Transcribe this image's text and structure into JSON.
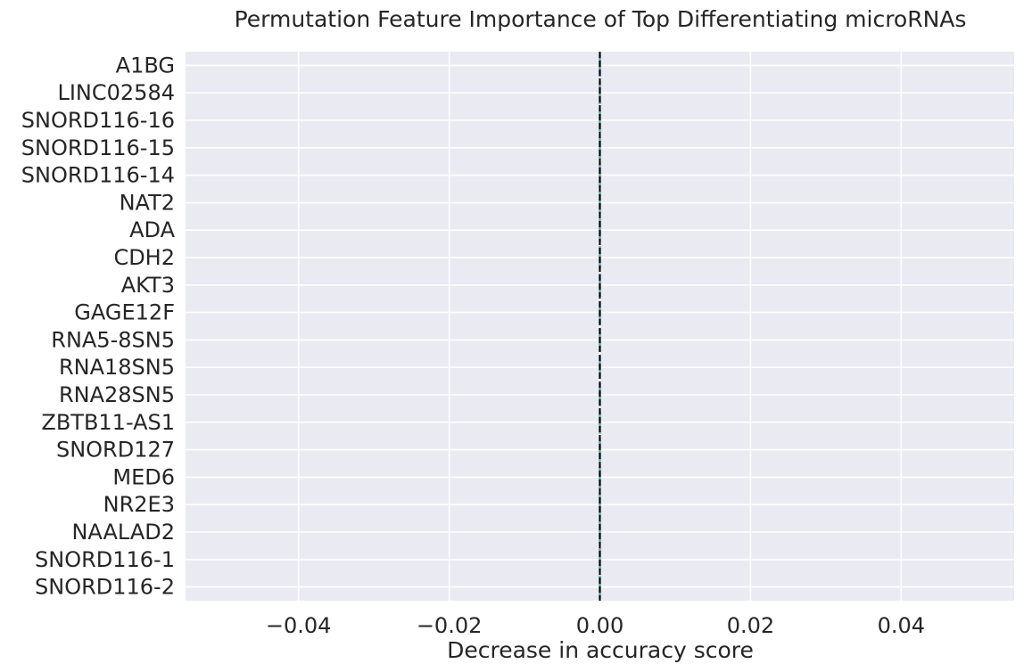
{
  "chart_data": {
    "type": "boxplot",
    "orientation": "horizontal",
    "title": "Permutation Feature Importance of Top Differentiating microRNAs",
    "xlabel": "Decrease in accuracy score",
    "ylabel": "",
    "xlim": [
      -0.055,
      0.055
    ],
    "xticks": [
      -0.04,
      -0.02,
      0.0,
      0.02,
      0.04
    ],
    "xtick_labels": [
      "−0.04",
      "−0.02",
      "0.00",
      "0.02",
      "0.04"
    ],
    "categories": [
      "A1BG",
      "LINC02584",
      "SNORD116-16",
      "SNORD116-15",
      "SNORD116-14",
      "NAT2",
      "ADA",
      "CDH2",
      "AKT3",
      "GAGE12F",
      "RNA5-8SN5",
      "RNA18SN5",
      "RNA28SN5",
      "ZBTB11-AS1",
      "SNORD127",
      "MED6",
      "NR2E3",
      "NAALAD2",
      "SNORD116-1",
      "SNORD116-2"
    ],
    "values": [
      0,
      0,
      0,
      0,
      0,
      0,
      0,
      0,
      0,
      0,
      0,
      0,
      0,
      0,
      0,
      0,
      0,
      0,
      0,
      0
    ],
    "reference_line": {
      "x": 0.0,
      "style": "dashed",
      "color": "#000000"
    },
    "grid": true,
    "colors": {
      "background": "#eaeaf2",
      "grid": "#ffffff",
      "box": "#5fa2a0",
      "text": "#262626"
    }
  }
}
